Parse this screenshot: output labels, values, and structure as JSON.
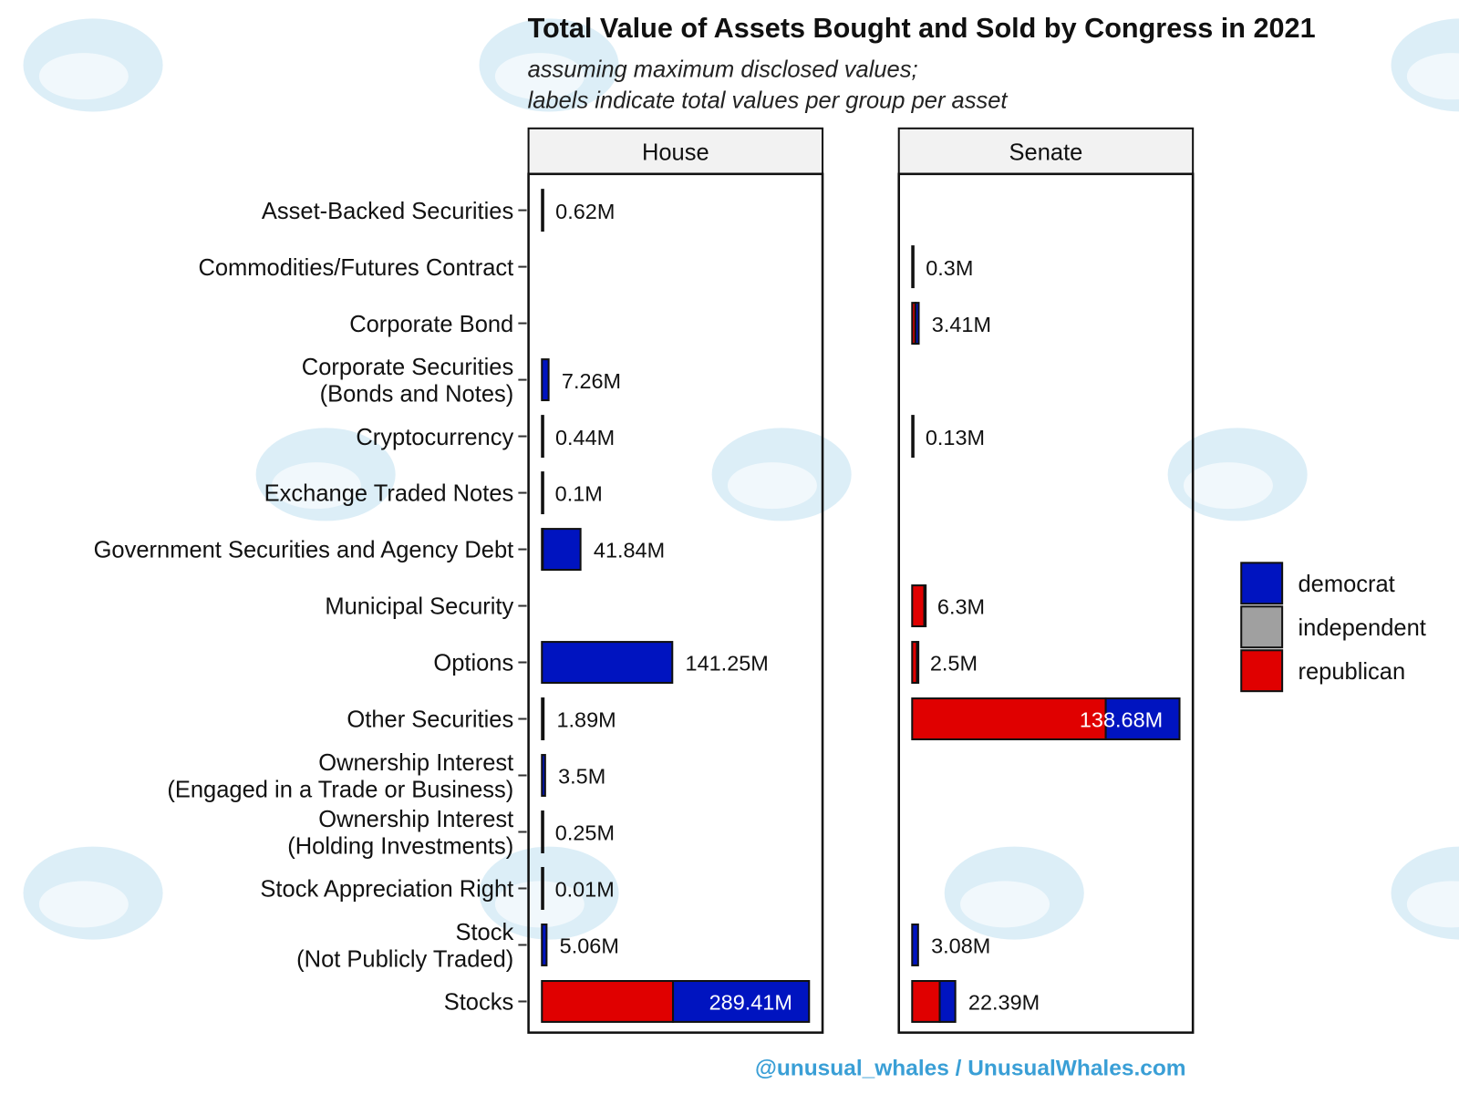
{
  "chart_data": {
    "type": "bar",
    "orientation": "horizontal",
    "stacked": true,
    "title": "Total Value of Assets Bought and Sold by Congress in 2021",
    "subtitle_lines": [
      "assuming maximum disclosed values;",
      "labels indicate total values per group per asset"
    ],
    "legend": {
      "placement": "right",
      "entries": [
        {
          "name": "democrat",
          "color": "#0014c0"
        },
        {
          "name": "independent",
          "color": "#a0a0a0"
        },
        {
          "name": "republican",
          "color": "#e00000"
        }
      ]
    },
    "unit": "M",
    "grid": false,
    "categories": [
      "Asset-Backed Securities",
      "Commodities/Futures Contract",
      "Corporate Bond",
      "Corporate Securities\n(Bonds and Notes)",
      "Cryptocurrency",
      "Exchange Traded Notes",
      "Government Securities and Agency Debt",
      "Municipal Security",
      "Options",
      "Other Securities",
      "Ownership Interest\n(Engaged in a Trade or Business)",
      "Ownership Interest\n(Holding Investments)",
      "Stock Appreciation Right",
      "Stock\n(Not Publicly Traded)",
      "Stocks"
    ],
    "facets": [
      {
        "name": "House",
        "xlim": [
          -14.5,
          304
        ],
        "series": [
          {
            "name": "republican",
            "values": [
              0,
              null,
              null,
              0,
              0,
              0,
              1.0,
              null,
              0,
              0,
              0,
              0,
              0,
              0,
              142.0
            ]
          },
          {
            "name": "democrat",
            "values": [
              0.62,
              null,
              null,
              7.26,
              0.44,
              0.1,
              40.84,
              null,
              141.25,
              1.89,
              3.5,
              0.25,
              0.01,
              5.06,
              147.41
            ]
          }
        ],
        "labels": [
          "0.62M",
          "",
          "",
          "7.26M",
          "0.44M",
          "0.1M",
          "41.84M",
          "",
          "141.25M",
          "1.89M",
          "3.5M",
          "0.25M",
          "0.01M",
          "5.06M",
          "289.41M"
        ]
      },
      {
        "name": "Senate",
        "xlim": [
          -6.9,
          145.6
        ],
        "series": [
          {
            "name": "republican",
            "values": [
              null,
              0,
              1.7,
              null,
              0,
              null,
              null,
              6.3,
              2.5,
              100.4,
              null,
              null,
              null,
              0,
              14.3
            ]
          },
          {
            "name": "democrat",
            "values": [
              null,
              0.3,
              1.71,
              null,
              0.13,
              null,
              null,
              0,
              0,
              38.28,
              null,
              null,
              null,
              3.08,
              8.09
            ]
          }
        ],
        "labels": [
          "",
          "0.3M",
          "3.41M",
          "",
          "0.13M",
          "",
          "",
          "6.3M",
          "2.5M",
          "138.68M",
          "",
          "",
          "",
          "3.08M",
          "22.39M"
        ]
      }
    ]
  },
  "footer": "@unusual_whales / UnusualWhales.com",
  "colors": {
    "footer": "#3a9fd6",
    "strip": "#f2f2f2",
    "watermark": "#bfe0f0"
  }
}
